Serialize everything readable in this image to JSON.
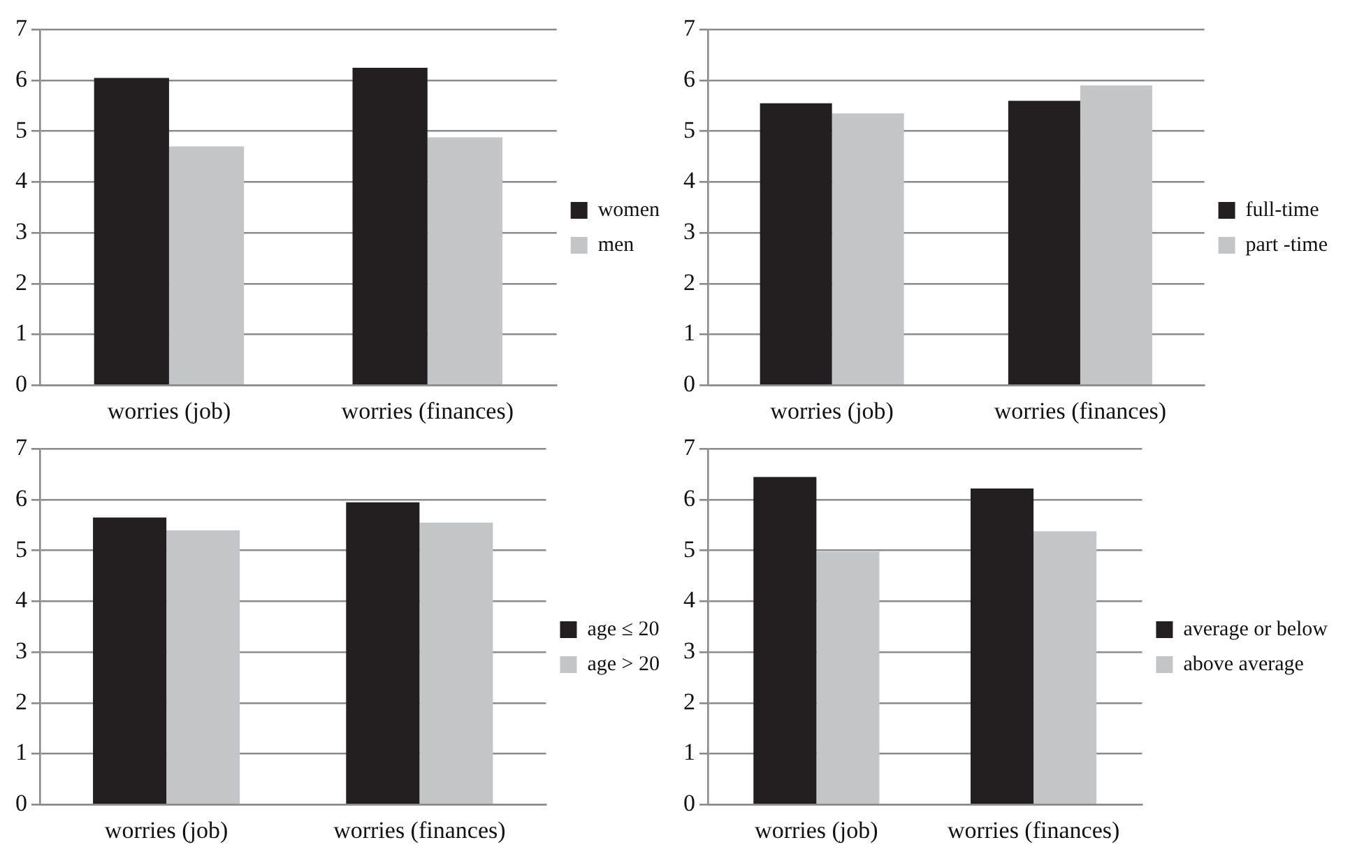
{
  "chart_data": [
    {
      "type": "bar",
      "categories": [
        "worries (job)",
        "worries (finances)"
      ],
      "series": [
        {
          "name": "women",
          "color": "#231f20",
          "values": [
            6.05,
            6.25
          ]
        },
        {
          "name": "men",
          "color": "#c4c5c7",
          "values": [
            4.7,
            4.88
          ]
        }
      ],
      "ylim": [
        0,
        7
      ],
      "yticks": [
        0,
        1,
        2,
        3,
        4,
        5,
        6,
        7
      ],
      "grid": "y",
      "legend": "right"
    },
    {
      "type": "bar",
      "categories": [
        "worries (job)",
        "worries (finances)"
      ],
      "series": [
        {
          "name": "full-time",
          "color": "#231f20",
          "values": [
            5.55,
            5.6
          ]
        },
        {
          "name": "part -time",
          "color": "#c4c5c7",
          "values": [
            5.35,
            5.9
          ]
        }
      ],
      "ylim": [
        0,
        7
      ],
      "yticks": [
        0,
        1,
        2,
        3,
        4,
        5,
        6,
        7
      ],
      "grid": "y",
      "legend": "right"
    },
    {
      "type": "bar",
      "categories": [
        "worries (job)",
        "worries (finances)"
      ],
      "series": [
        {
          "name": "age ≤ 20",
          "color": "#231f20",
          "values": [
            5.65,
            5.95
          ]
        },
        {
          "name": "age > 20",
          "color": "#c4c5c7",
          "values": [
            5.4,
            5.55
          ]
        }
      ],
      "ylim": [
        0,
        7
      ],
      "yticks": [
        0,
        1,
        2,
        3,
        4,
        5,
        6,
        7
      ],
      "grid": "y",
      "legend": "right"
    },
    {
      "type": "bar",
      "categories": [
        "worries (job)",
        "worries (finances)"
      ],
      "series": [
        {
          "name": "average or below",
          "color": "#231f20",
          "values": [
            6.45,
            6.22
          ]
        },
        {
          "name": "above average",
          "color": "#c4c5c7",
          "values": [
            4.98,
            5.38
          ]
        }
      ],
      "ylim": [
        0,
        7
      ],
      "yticks": [
        0,
        1,
        2,
        3,
        4,
        5,
        6,
        7
      ],
      "grid": "y",
      "legend": "right"
    }
  ]
}
